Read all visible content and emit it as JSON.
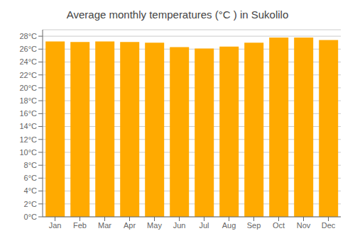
{
  "chart_data": {
    "type": "bar",
    "title": "Average monthly temperatures (°C ) in Sukolilo",
    "categories": [
      "Jan",
      "Feb",
      "Mar",
      "Apr",
      "May",
      "Jun",
      "Jul",
      "Aug",
      "Sep",
      "Oct",
      "Nov",
      "Dec"
    ],
    "values": [
      27.2,
      27.1,
      27.2,
      27.1,
      27.0,
      26.3,
      26.1,
      26.4,
      27.0,
      27.8,
      27.8,
      27.4
    ],
    "color": "#FFAA00",
    "ylim": [
      0,
      29
    ],
    "yticks": [
      {
        "value": 0,
        "label": "0°C"
      },
      {
        "value": 2,
        "label": "2°C"
      },
      {
        "value": 4,
        "label": "4°C"
      },
      {
        "value": 6,
        "label": "6°C"
      },
      {
        "value": 8,
        "label": "8°C"
      },
      {
        "value": 10,
        "label": "10°C"
      },
      {
        "value": 12,
        "label": "12°C"
      },
      {
        "value": 14,
        "label": "14°C"
      },
      {
        "value": 16,
        "label": "16°C"
      },
      {
        "value": 18,
        "label": "18°C"
      },
      {
        "value": 20,
        "label": "20°C"
      },
      {
        "value": 22,
        "label": "22°C"
      },
      {
        "value": 24,
        "label": "24°C"
      },
      {
        "value": 26,
        "label": "26°C"
      },
      {
        "value": 28,
        "label": "28°C"
      }
    ],
    "grid": true
  }
}
